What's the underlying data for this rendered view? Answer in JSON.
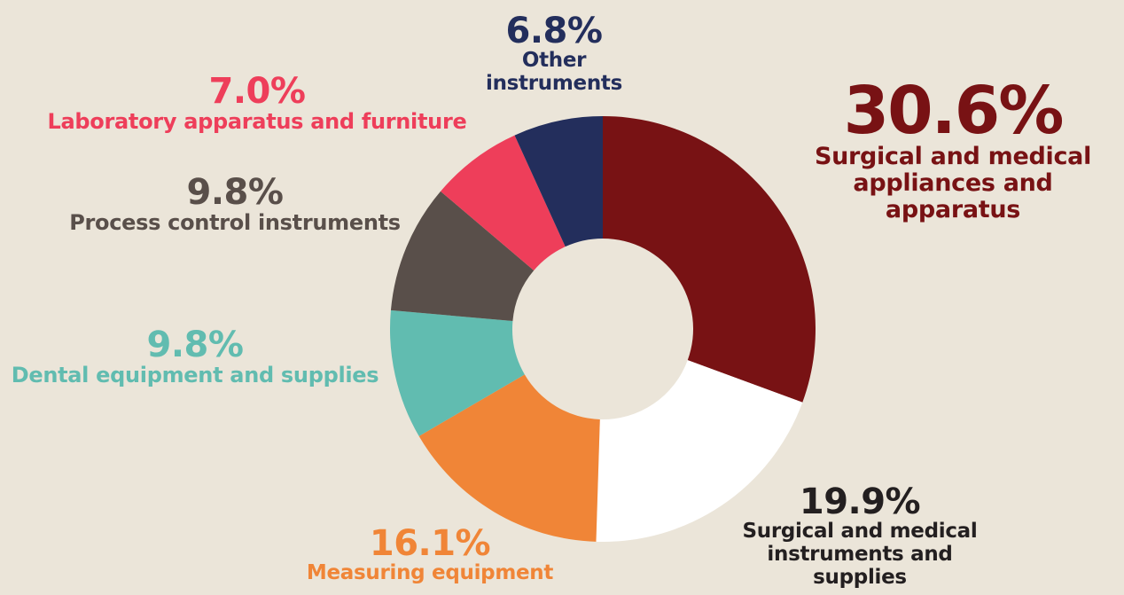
{
  "chart_data": {
    "type": "pie",
    "donut": true,
    "slices": [
      {
        "label": "Surgical and medical appliances and apparatus",
        "value": 30.6,
        "value_label": "30.6%",
        "color": "#781214"
      },
      {
        "label": "Surgical and medical instruments and supplies",
        "value": 19.9,
        "value_label": "19.9%",
        "color": "#ffffff"
      },
      {
        "label": "Measuring equipment",
        "value": 16.1,
        "value_label": "16.1%",
        "color": "#f08537"
      },
      {
        "label": "Dental equipment and supplies",
        "value": 9.8,
        "value_label": "9.8%",
        "color": "#61bcb0"
      },
      {
        "label": "Process control instruments",
        "value": 9.8,
        "value_label": "9.8%",
        "color": "#594f4a"
      },
      {
        "label": "Laboratory apparatus and furniture",
        "value": 7.0,
        "value_label": "7.0%",
        "color": "#ee3e5a"
      },
      {
        "label": "Other instruments",
        "value": 6.8,
        "value_label": "6.8%",
        "color": "#232e5c"
      }
    ]
  },
  "label_colors": {
    "surgical_appliances": "#781214",
    "surgical_instruments": "#231f20",
    "measuring": "#f08537",
    "dental": "#61bcb0",
    "process": "#594f4a",
    "laboratory": "#ee3e5a",
    "other": "#232e5c"
  }
}
